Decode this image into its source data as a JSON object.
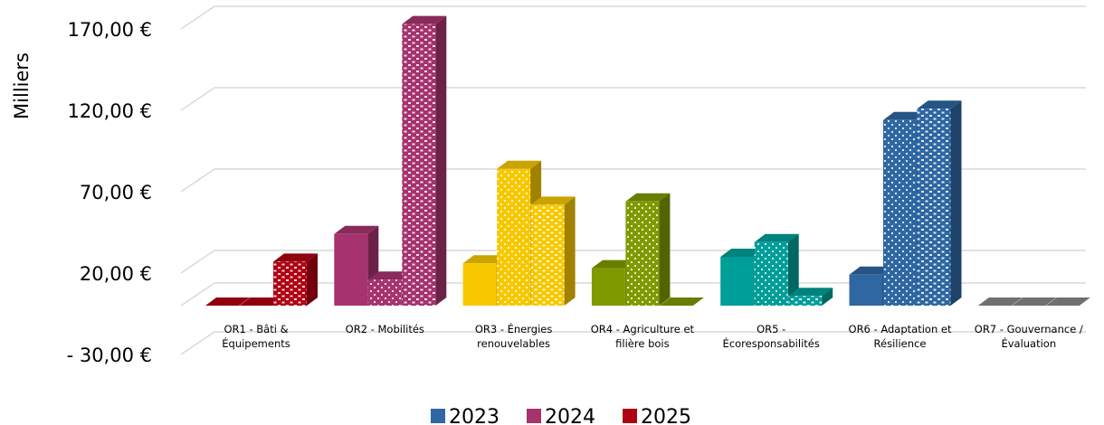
{
  "chart_data": {
    "type": "bar",
    "ylabel": "Milliers",
    "ylim": [
      -30,
      170
    ],
    "yticks": [
      -30,
      20,
      70,
      120,
      170
    ],
    "ytick_labels": [
      "- 30,00 €",
      "20,00 €",
      "70,00 €",
      "120,00 €",
      "170,00 €"
    ],
    "grid": true,
    "legend_position": "bottom",
    "categories": [
      [
        "OR1 - Bâti &",
        "Équipements"
      ],
      [
        "OR2 - Mobilités"
      ],
      [
        "OR3 - Énergies",
        "renouvelables"
      ],
      [
        "OR4 - Agriculture et",
        "filière bois"
      ],
      [
        "OR5 -",
        "Écoresponsabilités"
      ],
      [
        "OR6 - Adaptation et",
        "Résilience"
      ],
      [
        "OR7 - Gouvernance /",
        "Évaluation"
      ]
    ],
    "series": [
      {
        "name": "2023",
        "values": [
          0,
          44,
          26,
          23,
          30,
          19,
          0
        ]
      },
      {
        "name": "2024",
        "values": [
          0,
          16,
          84,
          64,
          39,
          114,
          0
        ]
      },
      {
        "name": "2025",
        "values": [
          27,
          173,
          62,
          0,
          6,
          121,
          0
        ]
      }
    ],
    "category_colors": [
      "#B00012",
      "#A6336E",
      "#F7C800",
      "#7E9A00",
      "#009E99",
      "#2E67A2",
      "#888888"
    ],
    "legend_colors": [
      "#2E67A2",
      "#A6336E",
      "#B00012"
    ]
  }
}
